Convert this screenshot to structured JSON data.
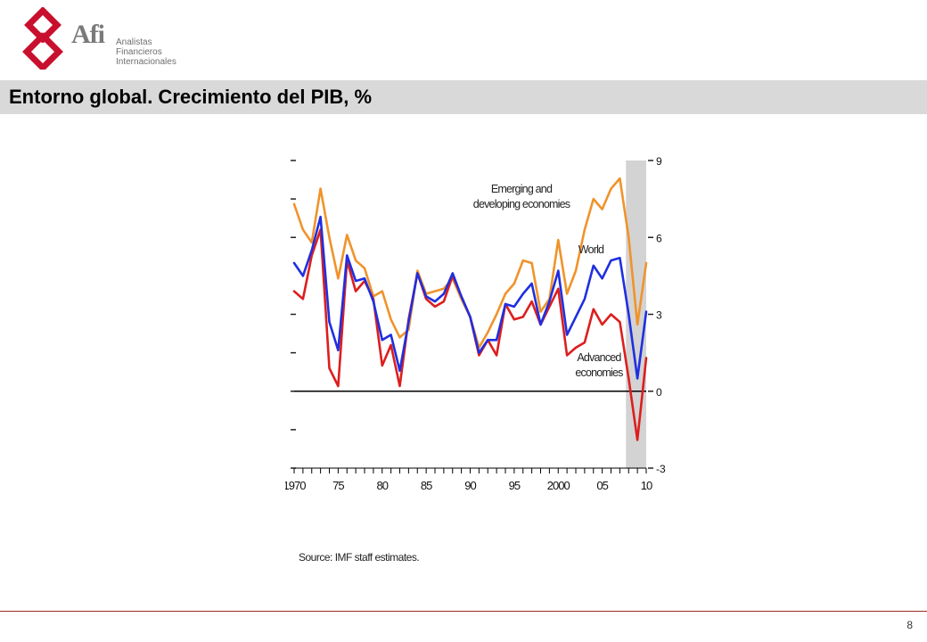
{
  "logo": {
    "name": "Afi",
    "subtitle": [
      "Analistas",
      "Financieros",
      "Internacionales"
    ],
    "icon": "afi-interlocked-diamond-icon",
    "color": "#c8102e"
  },
  "header": {
    "title": "Entorno global. Crecimiento del PIB, %"
  },
  "footer": {
    "page_number": "8"
  },
  "chart_data": {
    "type": "line",
    "x": [
      1970,
      1971,
      1972,
      1973,
      1974,
      1975,
      1976,
      1977,
      1978,
      1979,
      1980,
      1981,
      1982,
      1983,
      1984,
      1985,
      1986,
      1987,
      1988,
      1989,
      1990,
      1991,
      1992,
      1993,
      1994,
      1995,
      1996,
      1997,
      1998,
      1999,
      2000,
      2001,
      2002,
      2003,
      2004,
      2005,
      2006,
      2007,
      2008,
      2009,
      2010
    ],
    "x_tick_labels": [
      {
        "x": 1970,
        "label": "1970"
      },
      {
        "x": 1975,
        "label": "75"
      },
      {
        "x": 1980,
        "label": "80"
      },
      {
        "x": 1985,
        "label": "85"
      },
      {
        "x": 1990,
        "label": "90"
      },
      {
        "x": 1995,
        "label": "95"
      },
      {
        "x": 2000,
        "label": "2000"
      },
      {
        "x": 2005,
        "label": "05"
      },
      {
        "x": 2010,
        "label": "10"
      }
    ],
    "y_tick_labels": [
      {
        "y": 9,
        "label": "9"
      },
      {
        "y": 6,
        "label": "6"
      },
      {
        "y": 3,
        "label": "3"
      },
      {
        "y": 0,
        "label": "0"
      },
      {
        "y": -3,
        "label": "-3"
      }
    ],
    "ylim": [
      -3,
      9
    ],
    "xlim": [
      1970,
      2010
    ],
    "shaded_region": [
      2008,
      2010
    ],
    "shade_color": "#d3d3d3",
    "series": [
      {
        "name": "Emerging and developing economies",
        "label_lines": [
          "Emerging and",
          "developing economies"
        ],
        "color": "#f0932b",
        "values": [
          7.3,
          6.3,
          5.8,
          7.9,
          6.0,
          4.4,
          6.1,
          5.1,
          4.8,
          3.7,
          3.9,
          2.8,
          2.1,
          2.4,
          4.7,
          3.8,
          3.9,
          4.0,
          4.4,
          3.6,
          2.9,
          1.7,
          2.3,
          3.0,
          3.8,
          4.2,
          5.1,
          5.0,
          3.1,
          3.6,
          5.9,
          3.8,
          4.7,
          6.3,
          7.5,
          7.1,
          7.9,
          8.3,
          6.0,
          2.6,
          5.0
        ]
      },
      {
        "name": "World",
        "label_lines": [
          "World"
        ],
        "color": "#1f2fe0",
        "values": [
          5.0,
          4.5,
          5.5,
          6.8,
          2.7,
          1.6,
          5.3,
          4.3,
          4.4,
          3.5,
          2.0,
          2.2,
          0.8,
          2.7,
          4.6,
          3.7,
          3.5,
          3.8,
          4.6,
          3.7,
          2.9,
          1.5,
          2.0,
          2.0,
          3.4,
          3.3,
          3.8,
          4.2,
          2.6,
          3.5,
          4.7,
          2.2,
          2.9,
          3.6,
          4.9,
          4.4,
          5.1,
          5.2,
          3.0,
          0.5,
          3.1
        ]
      },
      {
        "name": "Advanced economies",
        "label_lines": [
          "Advanced",
          "economies"
        ],
        "color": "#dd1e1e",
        "values": [
          3.9,
          3.6,
          5.3,
          6.3,
          0.9,
          0.2,
          5.1,
          3.9,
          4.3,
          3.6,
          1.0,
          1.8,
          0.2,
          2.8,
          4.6,
          3.6,
          3.3,
          3.5,
          4.5,
          3.7,
          2.9,
          1.4,
          2.0,
          1.4,
          3.4,
          2.8,
          2.9,
          3.5,
          2.6,
          3.3,
          4.0,
          1.4,
          1.7,
          1.9,
          3.2,
          2.6,
          3.0,
          2.7,
          0.5,
          -1.9,
          1.3
        ]
      }
    ]
  },
  "source": "Source: IMF staff estimates."
}
